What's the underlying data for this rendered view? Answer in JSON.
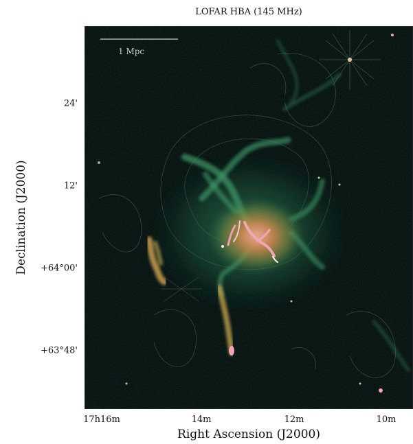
{
  "figure": {
    "title": "LOFAR HBA (145 MHz)",
    "xlabel": "Right Ascension (J2000)",
    "ylabel": "Declination (J2000)",
    "scalebar_label": "1 Mpc",
    "xticks": [
      "17h16m",
      "14m",
      "12m",
      "10m"
    ],
    "yticks": [
      "24'",
      "12'",
      "+64°00'",
      "+63°48'"
    ]
  },
  "colors": {
    "background": "#07100f",
    "diffuse_green": "#2f8a5a",
    "core_orange": "#d9834a",
    "hot_pink": "#f0a0b0",
    "contour": "#7fa8a0"
  }
}
